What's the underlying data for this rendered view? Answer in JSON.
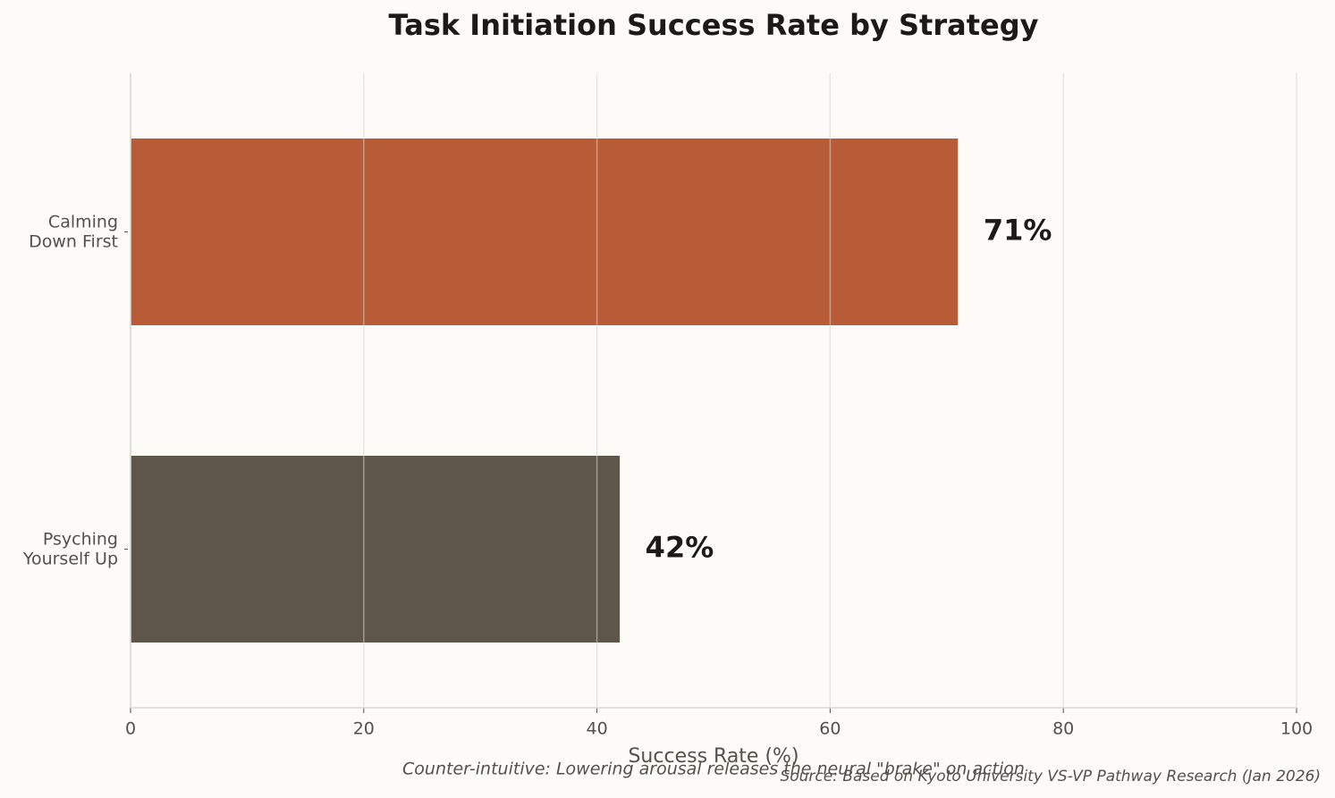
{
  "chart_data": {
    "type": "barh",
    "title": "Task Initiation Success Rate by Strategy",
    "categories": [
      [
        "Calming",
        "Down First"
      ],
      [
        "Psyching",
        "Yourself Up"
      ]
    ],
    "values": [
      71,
      42
    ],
    "value_labels": [
      "71%",
      "42%"
    ],
    "colors": [
      "#b85c38",
      "#5e564b"
    ],
    "xlabel": "Success Rate (%)",
    "xlim": [
      0,
      100
    ],
    "xticks": [
      0,
      20,
      40,
      60,
      80,
      100
    ],
    "grid": true,
    "annotation": "Counter-intuitive: Lowering arousal releases the neural \"brake\" on action",
    "source": "Source: Based on Kyoto University VS-VP Pathway Research (Jan 2026)"
  }
}
